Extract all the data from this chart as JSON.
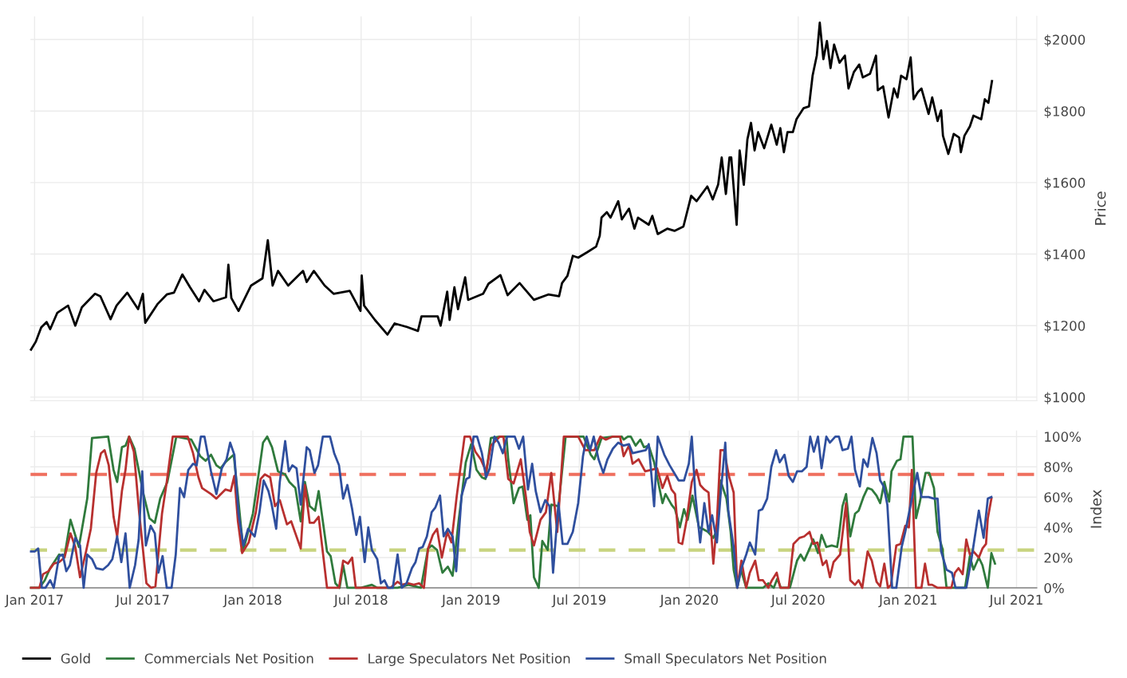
{
  "chart_data": [
    {
      "type": "line",
      "ylabel": "Price",
      "grid": true,
      "tick_labels": "y",
      "xlim": [
        "2016-12-25",
        "2021-08-04"
      ],
      "xticks": [
        {
          "value": "2017-01-01",
          "label": null
        },
        {
          "value": "2017-07-01",
          "label": null
        },
        {
          "value": "2018-01-01",
          "label": null
        },
        {
          "value": "2018-07-01",
          "label": null
        },
        {
          "value": "2019-01-01",
          "label": null
        },
        {
          "value": "2019-07-01",
          "label": null
        },
        {
          "value": "2020-01-01",
          "label": null
        },
        {
          "value": "2020-07-01",
          "label": null
        },
        {
          "value": "2021-01-01",
          "label": null
        },
        {
          "value": "2021-07-01",
          "label": null
        }
      ],
      "ylim": [
        990,
        2065
      ],
      "yticks": [
        {
          "value": 1000,
          "label": "$1000"
        },
        {
          "value": 1200,
          "label": "$1200"
        },
        {
          "value": 1400,
          "label": "$1400"
        },
        {
          "value": 1600,
          "label": "$1600"
        },
        {
          "value": 1800,
          "label": "$1800"
        },
        {
          "value": 2000,
          "label": "$2000"
        }
      ],
      "series": [
        {
          "name": "Gold",
          "color": "#000000",
          "x": [
            "2016-12-26",
            "2017-01-03",
            "2017-01-12",
            "2017-01-21",
            "2017-01-27",
            "2017-02-08",
            "2017-02-26",
            "2017-03-10",
            "2017-03-21",
            "2017-04-12",
            "2017-04-21",
            "2017-05-08",
            "2017-05-18",
            "2017-06-05",
            "2017-06-23",
            "2017-07-01",
            "2017-07-05",
            "2017-07-26",
            "2017-08-10",
            "2017-08-22",
            "2017-09-05",
            "2017-09-18",
            "2017-10-03",
            "2017-10-12",
            "2017-10-27",
            "2017-11-17",
            "2017-11-21",
            "2017-11-26",
            "2017-12-08",
            "2017-12-29",
            "2018-01-17",
            "2018-01-26",
            "2018-02-03",
            "2018-02-12",
            "2018-03-01",
            "2018-03-26",
            "2018-04-01",
            "2018-04-13",
            "2018-05-01",
            "2018-05-16",
            "2018-06-12",
            "2018-06-30",
            "2018-07-02",
            "2018-07-06",
            "2018-07-24",
            "2018-08-14",
            "2018-08-26",
            "2018-09-16",
            "2018-10-04",
            "2018-10-10",
            "2018-11-06",
            "2018-11-11",
            "2018-11-22",
            "2018-11-26",
            "2018-12-04",
            "2018-12-10",
            "2018-12-22",
            "2018-12-27",
            "2019-01-21",
            "2019-01-30",
            "2019-02-19",
            "2019-03-03",
            "2019-03-23",
            "2019-04-16",
            "2019-05-10",
            "2019-05-28",
            "2019-06-02",
            "2019-06-11",
            "2019-06-20",
            "2019-06-29",
            "2019-07-14",
            "2019-07-29",
            "2019-08-04",
            "2019-08-07",
            "2019-08-16",
            "2019-08-22",
            "2019-09-04",
            "2019-09-10",
            "2019-09-22",
            "2019-10-01",
            "2019-10-07",
            "2019-10-25",
            "2019-10-31",
            "2019-11-09",
            "2019-11-25",
            "2019-12-07",
            "2019-12-22",
            "2020-01-04",
            "2020-01-13",
            "2020-01-31",
            "2020-02-09",
            "2020-02-18",
            "2020-02-24",
            "2020-03-02",
            "2020-03-08",
            "2020-03-11",
            "2020-03-20",
            "2020-03-25",
            "2020-04-01",
            "2020-04-07",
            "2020-04-13",
            "2020-04-19",
            "2020-04-25",
            "2020-05-05",
            "2020-05-17",
            "2020-05-26",
            "2020-06-01",
            "2020-06-07",
            "2020-06-13",
            "2020-06-22",
            "2020-06-28",
            "2020-07-10",
            "2020-07-19",
            "2020-07-25",
            "2020-08-01",
            "2020-08-06",
            "2020-08-12",
            "2020-08-18",
            "2020-08-24",
            "2020-08-30",
            "2020-09-08",
            "2020-09-17",
            "2020-09-23",
            "2020-10-02",
            "2020-10-11",
            "2020-10-17",
            "2020-10-29",
            "2020-11-08",
            "2020-11-11",
            "2020-11-20",
            "2020-11-29",
            "2020-12-08",
            "2020-12-14",
            "2020-12-20",
            "2020-12-29",
            "2021-01-05",
            "2021-01-10",
            "2021-01-17",
            "2021-01-23",
            "2021-02-04",
            "2021-02-10",
            "2021-02-19",
            "2021-02-25",
            "2021-02-28",
            "2021-03-09",
            "2021-03-18",
            "2021-03-27",
            "2021-03-30",
            "2021-04-05",
            "2021-04-14",
            "2021-04-20",
            "2021-05-03",
            "2021-05-09",
            "2021-05-15",
            "2021-05-21"
          ],
          "values": [
            1133,
            1155,
            1195,
            1210,
            1190,
            1236,
            1256,
            1200,
            1251,
            1289,
            1282,
            1218,
            1256,
            1292,
            1246,
            1289,
            1208,
            1261,
            1287,
            1292,
            1343,
            1307,
            1268,
            1300,
            1268,
            1279,
            1370,
            1277,
            1241,
            1312,
            1332,
            1439,
            1312,
            1353,
            1312,
            1353,
            1322,
            1353,
            1312,
            1289,
            1297,
            1241,
            1340,
            1256,
            1216,
            1175,
            1206,
            1196,
            1185,
            1226,
            1226,
            1200,
            1295,
            1216,
            1307,
            1246,
            1335,
            1272,
            1289,
            1317,
            1341,
            1285,
            1319,
            1272,
            1287,
            1282,
            1319,
            1339,
            1395,
            1390,
            1405,
            1421,
            1451,
            1502,
            1517,
            1502,
            1548,
            1497,
            1527,
            1471,
            1502,
            1482,
            1507,
            1456,
            1471,
            1465,
            1477,
            1563,
            1548,
            1589,
            1553,
            1594,
            1670,
            1568,
            1670,
            1670,
            1482,
            1690,
            1594,
            1721,
            1767,
            1690,
            1741,
            1696,
            1762,
            1706,
            1752,
            1685,
            1741,
            1741,
            1777,
            1808,
            1813,
            1899,
            1955,
            2047,
            1945,
            1996,
            1920,
            1986,
            1935,
            1955,
            1863,
            1909,
            1930,
            1894,
            1904,
            1955,
            1858,
            1869,
            1782,
            1863,
            1838,
            1899,
            1889,
            1950,
            1833,
            1853,
            1863,
            1792,
            1838,
            1772,
            1802,
            1731,
            1680,
            1736,
            1726,
            1685,
            1731,
            1757,
            1787,
            1777,
            1833,
            1823,
            1884
          ]
        }
      ]
    },
    {
      "type": "line",
      "ylabel": "Index",
      "grid": true,
      "legend": "bottom",
      "xlim": [
        "2016-12-25",
        "2021-08-04"
      ],
      "xticks": [
        {
          "value": "2017-01-01",
          "label": "Jan 2017"
        },
        {
          "value": "2017-07-01",
          "label": "Jul 2017"
        },
        {
          "value": "2018-01-01",
          "label": "Jan 2018"
        },
        {
          "value": "2018-07-01",
          "label": "Jul 2018"
        },
        {
          "value": "2019-01-01",
          "label": "Jan 2019"
        },
        {
          "value": "2019-07-01",
          "label": "Jul 2019"
        },
        {
          "value": "2020-01-01",
          "label": "Jan 2020"
        },
        {
          "value": "2020-07-01",
          "label": "Jul 2020"
        },
        {
          "value": "2021-01-01",
          "label": "Jan 2021"
        },
        {
          "value": "2021-07-01",
          "label": "Jul 2021"
        }
      ],
      "ylim": [
        0,
        104
      ],
      "yticks": [
        {
          "value": 0,
          "label": "0%"
        },
        {
          "value": 20,
          "label": "20%"
        },
        {
          "value": 40,
          "label": "40%"
        },
        {
          "value": 60,
          "label": "60%"
        },
        {
          "value": 80,
          "label": "80%"
        },
        {
          "value": 100,
          "label": "100%"
        }
      ],
      "ref_lines": [
        {
          "axis": "y",
          "value": 75,
          "color": "#ef6f5e",
          "line_style": "dashed"
        },
        {
          "axis": "y",
          "value": 25,
          "color": "#c8d47f",
          "line_style": "dashed"
        }
      ],
      "series": [
        {
          "name": "Commercials Net Position",
          "color": "#2f7a3c",
          "x": [
            "2016-12-26",
            "2017-01-09",
            "2017-01-18",
            "2017-01-27",
            "2017-02-11",
            "2017-02-20",
            "2017-03-02",
            "2017-03-16",
            "2017-03-30",
            "2017-04-07",
            "2017-05-04",
            "2017-05-13",
            "2017-05-19",
            "2017-05-27",
            "2017-06-02",
            "2017-06-08",
            "2017-06-17",
            "2017-07-02",
            "2017-07-12",
            "2017-07-21",
            "2017-07-30",
            "2017-08-11",
            "2017-08-26",
            "2017-09-20",
            "2017-10-05",
            "2017-10-14",
            "2017-10-23",
            "2017-11-01",
            "2017-11-08",
            "2017-11-16",
            "2017-11-30",
            "2017-12-07",
            "2017-12-16",
            "2018-01-01",
            "2018-01-12",
            "2018-01-18",
            "2018-01-25",
            "2018-02-02",
            "2018-02-12",
            "2018-02-24",
            "2018-03-03",
            "2018-03-13",
            "2018-03-22",
            "2018-03-29",
            "2018-04-06",
            "2018-04-15",
            "2018-04-21",
            "2018-05-05",
            "2018-05-11",
            "2018-05-19",
            "2018-05-26",
            "2018-06-01",
            "2018-06-08",
            "2018-07-01",
            "2018-07-19",
            "2018-07-28",
            "2018-08-31",
            "2018-09-18",
            "2018-10-09",
            "2018-10-21",
            "2018-10-27",
            "2018-11-05",
            "2018-11-14",
            "2018-11-23",
            "2018-12-01",
            "2018-12-11",
            "2018-12-23",
            "2019-01-01",
            "2019-01-10",
            "2019-01-19",
            "2019-01-25",
            "2019-02-03",
            "2019-02-18",
            "2019-03-01",
            "2019-03-04",
            "2019-03-13",
            "2019-03-22",
            "2019-03-28",
            "2019-04-05",
            "2019-04-10",
            "2019-04-16",
            "2019-04-24",
            "2019-04-30",
            "2019-05-09",
            "2019-05-15",
            "2019-05-27",
            "2019-06-08",
            "2019-06-26",
            "2019-07-08",
            "2019-07-20",
            "2019-07-26",
            "2019-08-07",
            "2019-08-26",
            "2019-09-10",
            "2019-09-13",
            "2019-09-20",
            "2019-09-25",
            "2019-10-03",
            "2019-10-11",
            "2019-10-17",
            "2019-10-25",
            "2019-11-03",
            "2019-11-17",
            "2019-11-22",
            "2019-12-02",
            "2019-12-08",
            "2019-12-16",
            "2019-12-23",
            "2019-12-29",
            "2020-01-06",
            "2020-01-17",
            "2020-01-23",
            "2020-02-01",
            "2020-02-10",
            "2020-02-16",
            "2020-02-22",
            "2020-03-03",
            "2020-03-10",
            "2020-03-15",
            "2020-03-21",
            "2020-03-27",
            "2020-04-05",
            "2020-04-24",
            "2020-05-03",
            "2020-05-12",
            "2020-05-21",
            "2020-05-27",
            "2020-06-02",
            "2020-06-17",
            "2020-06-23",
            "2020-06-29",
            "2020-07-05",
            "2020-07-11",
            "2020-07-20",
            "2020-07-26",
            "2020-08-03",
            "2020-08-09",
            "2020-08-17",
            "2020-08-26",
            "2020-09-04",
            "2020-09-07",
            "2020-09-13",
            "2020-09-19",
            "2020-09-26",
            "2020-10-04",
            "2020-10-10",
            "2020-10-18",
            "2020-10-25",
            "2020-11-01",
            "2020-11-09",
            "2020-11-15",
            "2020-11-22",
            "2020-11-30",
            "2020-12-04",
            "2020-12-13",
            "2020-12-19",
            "2020-12-24",
            "2021-01-08",
            "2021-01-14",
            "2021-01-20",
            "2021-01-30",
            "2021-02-05",
            "2021-02-13",
            "2021-02-19",
            "2021-02-27",
            "2021-03-06",
            "2021-04-06",
            "2021-04-14",
            "2021-04-20",
            "2021-04-29",
            "2021-05-05",
            "2021-05-14",
            "2021-05-20",
            "2021-05-26"
          ],
          "values": [
            0,
            0,
            5,
            13,
            22,
            21,
            45,
            27,
            59,
            99,
            100,
            78,
            70,
            93,
            94,
            100,
            92,
            62,
            46,
            43,
            59,
            70,
            100,
            98,
            87,
            84,
            88,
            81,
            79,
            83,
            88,
            61,
            25,
            49,
            79,
            96,
            100,
            93,
            77,
            75,
            70,
            66,
            44,
            70,
            54,
            51,
            64,
            24,
            21,
            3,
            0,
            15,
            0,
            0,
            2,
            0,
            0,
            2,
            0,
            26,
            28,
            25,
            10,
            14,
            8,
            44,
            83,
            95,
            78,
            73,
            72,
            99,
            100,
            100,
            85,
            56,
            66,
            67,
            45,
            48,
            7,
            0,
            31,
            25,
            55,
            54,
            100,
            100,
            100,
            88,
            85,
            99,
            100,
            100,
            98,
            100,
            100,
            94,
            98,
            93,
            94,
            83,
            56,
            62,
            55,
            52,
            40,
            52,
            45,
            61,
            40,
            39,
            37,
            33,
            38,
            71,
            59,
            37,
            12,
            0,
            12,
            0,
            0,
            0,
            3,
            0,
            6,
            0,
            0,
            9,
            18,
            22,
            18,
            26,
            32,
            23,
            35,
            27,
            28,
            27,
            34,
            54,
            62,
            34,
            49,
            51,
            60,
            66,
            65,
            61,
            56,
            70,
            57,
            77,
            84,
            85,
            100,
            100,
            46,
            56,
            76,
            76,
            66,
            37,
            26,
            0,
            0,
            21,
            12,
            20,
            15,
            0,
            23,
            16
          ]
        },
        {
          "name": "Large Speculators Net Position",
          "color": "#b8302f",
          "x": [
            "2016-12-26",
            "2017-01-09",
            "2017-01-15",
            "2017-01-24",
            "2017-02-02",
            "2017-02-11",
            "2017-02-20",
            "2017-03-02",
            "2017-03-10",
            "2017-03-18",
            "2017-03-28",
            "2017-04-05",
            "2017-04-14",
            "2017-04-22",
            "2017-04-28",
            "2017-05-05",
            "2017-05-13",
            "2017-05-19",
            "2017-05-27",
            "2017-06-02",
            "2017-06-08",
            "2017-06-16",
            "2017-06-25",
            "2017-07-07",
            "2017-07-15",
            "2017-07-22",
            "2017-08-02",
            "2017-08-10",
            "2017-08-20",
            "2017-09-14",
            "2017-09-23",
            "2017-10-02",
            "2017-10-08",
            "2017-10-23",
            "2017-11-01",
            "2017-11-16",
            "2017-11-25",
            "2017-12-01",
            "2017-12-07",
            "2017-12-14",
            "2017-12-25",
            "2018-01-06",
            "2018-01-14",
            "2018-01-21",
            "2018-01-30",
            "2018-02-07",
            "2018-02-15",
            "2018-02-27",
            "2018-03-06",
            "2018-03-22",
            "2018-03-29",
            "2018-04-06",
            "2018-04-13",
            "2018-04-21",
            "2018-05-05",
            "2018-05-14",
            "2018-05-25",
            "2018-06-01",
            "2018-06-09",
            "2018-06-16",
            "2018-06-22",
            "2018-08-01",
            "2018-08-19",
            "2018-08-31",
            "2018-09-07",
            "2018-09-18",
            "2018-09-27",
            "2018-10-06",
            "2018-10-14",
            "2018-10-21",
            "2018-10-29",
            "2018-11-05",
            "2018-11-13",
            "2018-11-22",
            "2018-11-29",
            "2018-12-08",
            "2018-12-21",
            "2018-12-30",
            "2019-01-08",
            "2019-01-17",
            "2019-01-26",
            "2019-02-03",
            "2019-02-18",
            "2019-02-24",
            "2019-03-04",
            "2019-03-13",
            "2019-03-25",
            "2019-04-03",
            "2019-04-09",
            "2019-04-16",
            "2019-04-27",
            "2019-05-06",
            "2019-05-15",
            "2019-05-25",
            "2019-06-05",
            "2019-06-29",
            "2019-07-11",
            "2019-07-26",
            "2019-08-05",
            "2019-08-14",
            "2019-08-26",
            "2019-09-07",
            "2019-09-13",
            "2019-09-22",
            "2019-09-28",
            "2019-10-08",
            "2019-10-19",
            "2019-10-29",
            "2019-11-08",
            "2019-11-17",
            "2019-11-25",
            "2019-12-02",
            "2019-12-08",
            "2019-12-14",
            "2019-12-20",
            "2019-12-27",
            "2020-01-05",
            "2020-01-13",
            "2020-01-19",
            "2020-01-26",
            "2020-02-02",
            "2020-02-10",
            "2020-02-16",
            "2020-02-22",
            "2020-02-28",
            "2020-03-07",
            "2020-03-15",
            "2020-03-21",
            "2020-03-28",
            "2020-04-05",
            "2020-04-11",
            "2020-04-20",
            "2020-04-26",
            "2020-05-03",
            "2020-05-12",
            "2020-05-18",
            "2020-05-26",
            "2020-06-01",
            "2020-06-15",
            "2020-06-23",
            "2020-07-03",
            "2020-07-11",
            "2020-07-20",
            "2020-07-26",
            "2020-08-02",
            "2020-08-11",
            "2020-08-17",
            "2020-08-23",
            "2020-08-29",
            "2020-09-09",
            "2020-09-19",
            "2020-09-26",
            "2020-10-04",
            "2020-10-10",
            "2020-10-16",
            "2020-10-25",
            "2020-11-01",
            "2020-11-09",
            "2020-11-15",
            "2020-11-22",
            "2020-11-28",
            "2020-12-03",
            "2020-12-12",
            "2020-12-19",
            "2020-12-27",
            "2021-01-02",
            "2021-01-07",
            "2021-01-14",
            "2021-01-23",
            "2021-01-29",
            "2021-02-04",
            "2021-02-10",
            "2021-02-19",
            "2021-03-14",
            "2021-03-20",
            "2021-03-26",
            "2021-04-02",
            "2021-04-08",
            "2021-04-14",
            "2021-04-20",
            "2021-04-29",
            "2021-05-05",
            "2021-05-11",
            "2021-05-14",
            "2021-05-20"
          ],
          "values": [
            0,
            0,
            9,
            11,
            16,
            17,
            20,
            36,
            27,
            7,
            24,
            39,
            76,
            89,
            91,
            81,
            47,
            34,
            64,
            78,
            100,
            90,
            49,
            3,
            0,
            1,
            49,
            70,
            100,
            100,
            89,
            73,
            66,
            62,
            59,
            65,
            64,
            74,
            44,
            23,
            30,
            50,
            72,
            75,
            73,
            54,
            58,
            42,
            44,
            26,
            68,
            43,
            43,
            47,
            0,
            0,
            0,
            18,
            16,
            20,
            0,
            0,
            0,
            4,
            2,
            3,
            2,
            3,
            0,
            26,
            35,
            39,
            20,
            37,
            30,
            61,
            100,
            100,
            90,
            85,
            77,
            94,
            100,
            100,
            72,
            69,
            85,
            59,
            37,
            28,
            45,
            50,
            76,
            37,
            100,
            100,
            91,
            91,
            100,
            98,
            100,
            100,
            87,
            94,
            82,
            85,
            77,
            78,
            79,
            66,
            74,
            65,
            62,
            30,
            29,
            44,
            70,
            78,
            68,
            65,
            63,
            16,
            44,
            91,
            91,
            74,
            63,
            0,
            18,
            0,
            10,
            18,
            5,
            5,
            0,
            5,
            10,
            0,
            0,
            29,
            33,
            34,
            37,
            29,
            30,
            15,
            18,
            7,
            17,
            22,
            56,
            5,
            2,
            5,
            0,
            24,
            18,
            4,
            1,
            16,
            0,
            2,
            28,
            29,
            41,
            40,
            78,
            0,
            0,
            16,
            2,
            2,
            0,
            0,
            10,
            13,
            9,
            32,
            22,
            24,
            20,
            26,
            29,
            46,
            59
          ]
        },
        {
          "name": "Small Speculators Net Position",
          "color": "#2f4f9e",
          "x": [
            "2016-12-26",
            "2017-01-01",
            "2017-01-07",
            "2017-01-13",
            "2017-01-19",
            "2017-01-27",
            "2017-02-02",
            "2017-02-11",
            "2017-02-17",
            "2017-02-23",
            "2017-03-01",
            "2017-03-10",
            "2017-03-18",
            "2017-03-24",
            "2017-03-30",
            "2017-04-07",
            "2017-04-14",
            "2017-04-25",
            "2017-05-04",
            "2017-05-11",
            "2017-05-19",
            "2017-05-26",
            "2017-06-02",
            "2017-06-09",
            "2017-06-18",
            "2017-06-24",
            "2017-06-30",
            "2017-07-06",
            "2017-07-14",
            "2017-07-21",
            "2017-07-27",
            "2017-08-03",
            "2017-08-10",
            "2017-08-18",
            "2017-08-25",
            "2017-09-01",
            "2017-09-08",
            "2017-09-15",
            "2017-09-23",
            "2017-09-29",
            "2017-10-06",
            "2017-10-12",
            "2017-10-23",
            "2017-11-01",
            "2017-11-10",
            "2017-11-18",
            "2017-11-24",
            "2017-12-01",
            "2017-12-08",
            "2017-12-16",
            "2017-12-24",
            "2018-01-04",
            "2018-01-12",
            "2018-01-19",
            "2018-01-27",
            "2018-02-01",
            "2018-02-09",
            "2018-02-15",
            "2018-02-24",
            "2018-03-02",
            "2018-03-08",
            "2018-03-15",
            "2018-03-22",
            "2018-04-01",
            "2018-04-06",
            "2018-04-14",
            "2018-04-20",
            "2018-04-28",
            "2018-05-10",
            "2018-05-17",
            "2018-05-25",
            "2018-06-01",
            "2018-06-08",
            "2018-06-16",
            "2018-06-23",
            "2018-06-29",
            "2018-07-07",
            "2018-07-13",
            "2018-07-19",
            "2018-07-28",
            "2018-08-03",
            "2018-08-09",
            "2018-08-15",
            "2018-08-23",
            "2018-08-31",
            "2018-09-07",
            "2018-09-15",
            "2018-09-24",
            "2018-09-30",
            "2018-10-06",
            "2018-10-12",
            "2018-10-19",
            "2018-10-27",
            "2018-11-02",
            "2018-11-10",
            "2018-11-16",
            "2018-11-23",
            "2018-12-01",
            "2018-12-07",
            "2018-12-16",
            "2018-12-24",
            "2018-12-29",
            "2019-01-05",
            "2019-01-11",
            "2019-01-19",
            "2019-01-26",
            "2019-02-01",
            "2019-02-09",
            "2019-02-16",
            "2019-02-23",
            "2019-03-02",
            "2019-03-15",
            "2019-03-22",
            "2019-03-29",
            "2019-04-06",
            "2019-04-13",
            "2019-04-19",
            "2019-04-27",
            "2019-05-05",
            "2019-05-12",
            "2019-05-18",
            "2019-05-27",
            "2019-06-03",
            "2019-06-11",
            "2019-06-20",
            "2019-06-29",
            "2019-07-07",
            "2019-07-13",
            "2019-07-19",
            "2019-07-25",
            "2019-08-02",
            "2019-08-10",
            "2019-08-17",
            "2019-08-26",
            "2019-09-04",
            "2019-09-13",
            "2019-09-22",
            "2019-09-28",
            "2019-10-08",
            "2019-10-20",
            "2019-10-25",
            "2019-11-03",
            "2019-11-09",
            "2019-11-20",
            "2019-11-29",
            "2019-12-14",
            "2019-12-23",
            "2019-12-31",
            "2020-01-05",
            "2020-01-11",
            "2020-01-19",
            "2020-01-26",
            "2020-02-02",
            "2020-02-08",
            "2020-02-16",
            "2020-02-22",
            "2020-03-01",
            "2020-03-06",
            "2020-03-15",
            "2020-03-21",
            "2020-03-28",
            "2020-04-05",
            "2020-04-11",
            "2020-04-20",
            "2020-04-26",
            "2020-05-02",
            "2020-05-10",
            "2020-05-17",
            "2020-05-25",
            "2020-05-31",
            "2020-06-08",
            "2020-06-15",
            "2020-06-22",
            "2020-06-29",
            "2020-07-07",
            "2020-07-15",
            "2020-07-21",
            "2020-07-27",
            "2020-08-03",
            "2020-08-09",
            "2020-08-17",
            "2020-08-23",
            "2020-09-01",
            "2020-09-07",
            "2020-09-13",
            "2020-09-22",
            "2020-09-28",
            "2020-10-04",
            "2020-10-12",
            "2020-10-18",
            "2020-10-25",
            "2020-11-02",
            "2020-11-09",
            "2020-11-15",
            "2020-11-21",
            "2020-11-27",
            "2020-12-05",
            "2020-12-12",
            "2020-12-21",
            "2020-12-27",
            "2021-01-07",
            "2021-01-16",
            "2021-01-23",
            "2021-02-04",
            "2021-02-13",
            "2021-02-19",
            "2021-02-25",
            "2021-03-06",
            "2021-03-15",
            "2021-03-21",
            "2021-04-08",
            "2021-04-17",
            "2021-04-29",
            "2021-05-07",
            "2021-05-14",
            "2021-05-20"
          ],
          "values": [
            24,
            24,
            26,
            0,
            0,
            5,
            0,
            21,
            22,
            11,
            15,
            33,
            28,
            0,
            22,
            19,
            13,
            12,
            15,
            19,
            34,
            17,
            36,
            0,
            15,
            32,
            77,
            28,
            41,
            36,
            10,
            21,
            0,
            0,
            22,
            66,
            60,
            78,
            82,
            81,
            100,
            100,
            77,
            62,
            79,
            85,
            96,
            88,
            49,
            28,
            39,
            34,
            50,
            71,
            64,
            56,
            39,
            70,
            97,
            77,
            81,
            79,
            55,
            93,
            91,
            76,
            81,
            100,
            100,
            89,
            81,
            59,
            68,
            52,
            35,
            47,
            17,
            40,
            25,
            19,
            3,
            5,
            0,
            0,
            22,
            0,
            3,
            13,
            17,
            26,
            27,
            34,
            50,
            53,
            61,
            34,
            39,
            34,
            11,
            61,
            72,
            73,
            100,
            100,
            89,
            73,
            79,
            100,
            96,
            89,
            100,
            100,
            92,
            100,
            65,
            82,
            64,
            50,
            58,
            54,
            10,
            56,
            29,
            29,
            37,
            56,
            87,
            100,
            91,
            100,
            85,
            76,
            85,
            92,
            96,
            94,
            95,
            89,
            90,
            91,
            95,
            54,
            100,
            88,
            81,
            71,
            71,
            82,
            100,
            61,
            30,
            56,
            37,
            48,
            30,
            61,
            96,
            51,
            27,
            0,
            13,
            22,
            30,
            22,
            51,
            52,
            59,
            80,
            91,
            83,
            88,
            74,
            70,
            77,
            77,
            80,
            100,
            90,
            100,
            79,
            100,
            96,
            100,
            100,
            91,
            92,
            100,
            78,
            67,
            85,
            80,
            99,
            89,
            71,
            67,
            55,
            0,
            0,
            27,
            37,
            59,
            76,
            60,
            60,
            59,
            59,
            24,
            12,
            10,
            0,
            0,
            20,
            51,
            33,
            59,
            60
          ]
        }
      ]
    }
  ]
}
